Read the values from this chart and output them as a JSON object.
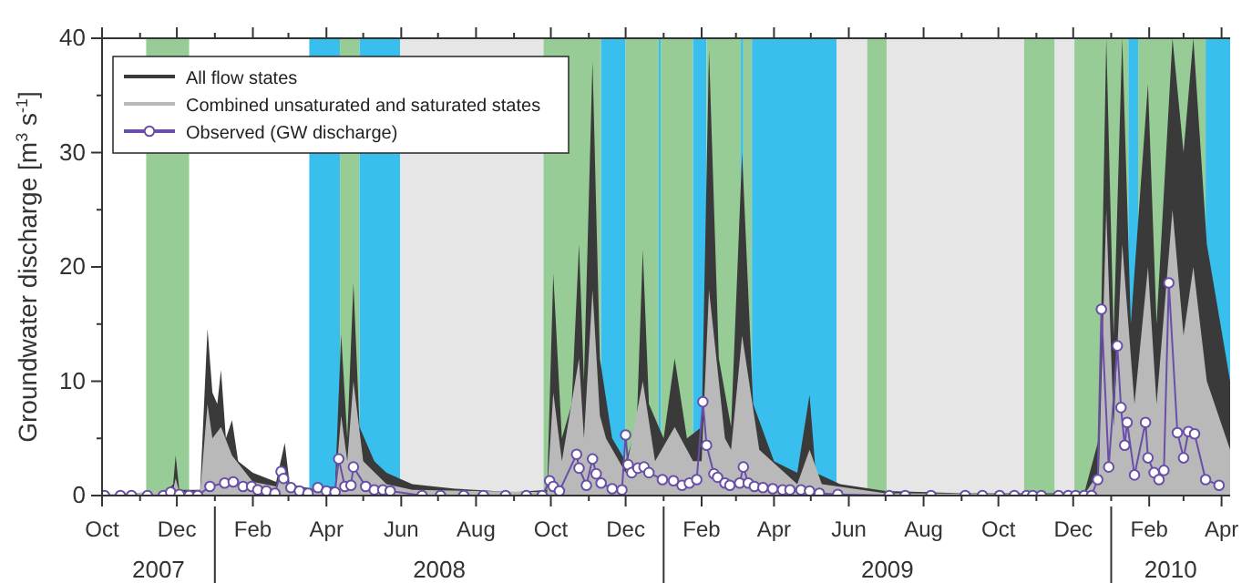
{
  "chart_data": {
    "type": "line",
    "ylabel": "Groundwater discharge [m$^{3}$ s$^{-1}$]",
    "xlim": [
      "2007-10-01",
      "2010-04-08"
    ],
    "ylim": [
      0,
      40
    ],
    "yticks": [
      0,
      {
        "value": 5,
        "label": null
      },
      10,
      {
        "value": 15,
        "label": null
      },
      20,
      {
        "value": 25,
        "label": null
      },
      30,
      {
        "value": 35,
        "label": null
      },
      40
    ],
    "xticks": [
      {
        "value": "2007-10-01",
        "label": "Oct"
      },
      {
        "value": "2007-11-01",
        "label": null
      },
      {
        "value": "2007-12-01",
        "label": "Dec"
      },
      {
        "value": "2008-01-01",
        "label": null
      },
      {
        "value": "2008-02-01",
        "label": "Feb"
      },
      {
        "value": "2008-03-01",
        "label": null
      },
      {
        "value": "2008-04-01",
        "label": "Apr"
      },
      {
        "value": "2008-05-01",
        "label": null
      },
      {
        "value": "2008-06-01",
        "label": "Jun"
      },
      {
        "value": "2008-07-01",
        "label": null
      },
      {
        "value": "2008-08-01",
        "label": "Aug"
      },
      {
        "value": "2008-09-01",
        "label": null
      },
      {
        "value": "2008-10-01",
        "label": "Oct"
      },
      {
        "value": "2008-11-01",
        "label": null
      },
      {
        "value": "2008-12-01",
        "label": "Dec"
      },
      {
        "value": "2009-01-01",
        "label": null
      },
      {
        "value": "2009-02-01",
        "label": "Feb"
      },
      {
        "value": "2009-03-01",
        "label": null
      },
      {
        "value": "2009-04-01",
        "label": "Apr"
      },
      {
        "value": "2009-05-01",
        "label": null
      },
      {
        "value": "2009-06-01",
        "label": "Jun"
      },
      {
        "value": "2009-07-01",
        "label": null
      },
      {
        "value": "2009-08-01",
        "label": "Aug"
      },
      {
        "value": "2009-09-01",
        "label": null
      },
      {
        "value": "2009-10-01",
        "label": "Oct"
      },
      {
        "value": "2009-11-01",
        "label": null
      },
      {
        "value": "2009-12-01",
        "label": "Dec"
      },
      {
        "value": "2010-01-01",
        "label": null
      },
      {
        "value": "2010-02-01",
        "label": "Feb"
      },
      {
        "value": "2010-03-01",
        "label": null
      },
      {
        "value": "2010-04-01",
        "label": "Apr"
      }
    ],
    "annotations": [
      "2007",
      "2008",
      "2009",
      "2010"
    ],
    "grid": false,
    "legend": "top left",
    "bands": [
      {
        "axis": "x",
        "from": "2007-11-06",
        "to": "2007-12-11",
        "color": "#97cc97"
      },
      {
        "axis": "x",
        "from": "2008-03-18",
        "to": "2008-04-12",
        "color": "#38bfee"
      },
      {
        "axis": "x",
        "from": "2008-04-12",
        "to": "2008-04-28",
        "color": "#97cc97"
      },
      {
        "axis": "x",
        "from": "2008-04-28",
        "to": "2008-05-31",
        "color": "#38bfee"
      },
      {
        "axis": "x",
        "from": "2008-05-31",
        "to": "2008-09-25",
        "color": "#e6e6e6"
      },
      {
        "axis": "x",
        "from": "2008-09-25",
        "to": "2008-11-11",
        "color": "#97cc97"
      },
      {
        "axis": "x",
        "from": "2008-11-11",
        "to": "2008-12-01",
        "color": "#38bfee"
      },
      {
        "axis": "x",
        "from": "2008-12-01",
        "to": "2008-12-28",
        "color": "#97cc97"
      },
      {
        "axis": "x",
        "from": "2008-12-28",
        "to": "2008-12-30",
        "color": "#38bfee"
      },
      {
        "axis": "x",
        "from": "2008-12-30",
        "to": "2009-01-25",
        "color": "#97cc97"
      },
      {
        "axis": "x",
        "from": "2009-01-25",
        "to": "2009-02-05",
        "color": "#38bfee"
      },
      {
        "axis": "x",
        "from": "2009-02-05",
        "to": "2009-03-05",
        "color": "#97cc97"
      },
      {
        "axis": "x",
        "from": "2009-03-05",
        "to": "2009-03-07",
        "color": "#38bfee"
      },
      {
        "axis": "x",
        "from": "2009-03-07",
        "to": "2009-03-14",
        "color": "#97cc97"
      },
      {
        "axis": "x",
        "from": "2009-03-14",
        "to": "2009-05-22",
        "color": "#38bfee"
      },
      {
        "axis": "x",
        "from": "2009-05-22",
        "to": "2009-06-16",
        "color": "#e6e6e6"
      },
      {
        "axis": "x",
        "from": "2009-06-16",
        "to": "2009-07-02",
        "color": "#97cc97"
      },
      {
        "axis": "x",
        "from": "2009-07-02",
        "to": "2009-10-22",
        "color": "#e6e6e6"
      },
      {
        "axis": "x",
        "from": "2009-10-22",
        "to": "2009-11-16",
        "color": "#97cc97"
      },
      {
        "axis": "x",
        "from": "2009-11-16",
        "to": "2009-12-02",
        "color": "#e6e6e6"
      },
      {
        "axis": "x",
        "from": "2009-12-02",
        "to": "2010-01-15",
        "color": "#97cc97"
      },
      {
        "axis": "x",
        "from": "2010-01-15",
        "to": "2010-01-23",
        "color": "#38bfee"
      },
      {
        "axis": "x",
        "from": "2010-01-23",
        "to": "2010-03-19",
        "color": "#97cc97"
      },
      {
        "axis": "x",
        "from": "2010-03-19",
        "to": "2010-04-08",
        "color": "#38bfee"
      }
    ],
    "series": [
      {
        "name": "All flow states",
        "type": "area",
        "color": "#3a3a3a",
        "x": [
          "2007-10-01",
          "2007-11-20",
          "2007-11-28",
          "2007-11-30",
          "2007-12-03",
          "2007-12-20",
          "2007-12-26",
          "2007-12-30",
          "2008-01-03",
          "2008-01-06",
          "2008-01-10",
          "2008-01-15",
          "2008-01-20",
          "2008-02-01",
          "2008-02-20",
          "2008-02-27",
          "2008-03-02",
          "2008-03-20",
          "2008-04-08",
          "2008-04-13",
          "2008-04-18",
          "2008-04-23",
          "2008-04-28",
          "2008-05-10",
          "2008-05-20",
          "2008-06-10",
          "2008-07-15",
          "2008-09-01",
          "2008-09-28",
          "2008-10-03",
          "2008-10-10",
          "2008-10-18",
          "2008-10-24",
          "2008-10-28",
          "2008-11-04",
          "2008-11-10",
          "2008-11-20",
          "2008-12-01",
          "2008-12-10",
          "2008-12-15",
          "2008-12-20",
          "2009-01-01",
          "2009-01-10",
          "2009-01-20",
          "2009-02-01",
          "2009-02-07",
          "2009-02-15",
          "2009-02-25",
          "2009-03-06",
          "2009-03-15",
          "2009-04-01",
          "2009-04-20",
          "2009-04-30",
          "2009-05-05",
          "2009-05-25",
          "2009-07-01",
          "2009-09-01",
          "2009-12-10",
          "2009-12-22",
          "2009-12-28",
          "2010-01-03",
          "2010-01-10",
          "2010-01-17",
          "2010-01-31",
          "2010-02-07",
          "2010-02-20",
          "2010-03-01",
          "2010-03-09",
          "2010-03-20",
          "2010-04-08"
        ],
        "values": [
          0.1,
          0.1,
          1,
          3.5,
          0.5,
          0.5,
          14.6,
          9,
          8,
          11,
          5,
          6.6,
          3,
          2,
          1.2,
          4.6,
          1,
          0.6,
          0.8,
          14.1,
          5,
          18.6,
          6,
          3,
          2,
          1,
          0.6,
          0.3,
          0.5,
          19.4,
          5,
          8,
          22,
          10,
          38,
          12,
          5,
          3,
          6,
          21.5,
          8,
          5,
          12,
          5,
          6,
          39,
          12,
          6,
          30,
          8,
          3,
          2,
          8.8,
          2,
          1,
          0.4,
          0.2,
          0.2,
          5,
          40,
          14,
          40,
          15,
          36,
          15,
          40,
          30,
          40,
          22,
          10
        ]
      },
      {
        "name": "Combined unsaturated and saturated states",
        "type": "area",
        "color": "#b9b9b9",
        "x": [
          "2007-10-01",
          "2007-11-28",
          "2007-11-30",
          "2007-12-03",
          "2007-12-20",
          "2007-12-26",
          "2007-12-30",
          "2008-01-06",
          "2008-01-15",
          "2008-02-01",
          "2008-02-20",
          "2008-02-27",
          "2008-03-02",
          "2008-04-08",
          "2008-04-13",
          "2008-04-18",
          "2008-04-23",
          "2008-05-01",
          "2008-05-20",
          "2008-06-10",
          "2008-09-28",
          "2008-10-03",
          "2008-10-10",
          "2008-10-24",
          "2008-10-28",
          "2008-11-04",
          "2008-11-10",
          "2008-11-15",
          "2008-12-01",
          "2008-12-15",
          "2008-12-25",
          "2009-01-10",
          "2009-01-25",
          "2009-02-01",
          "2009-02-07",
          "2009-02-20",
          "2009-02-25",
          "2009-03-06",
          "2009-03-20",
          "2009-04-20",
          "2009-04-30",
          "2009-05-10",
          "2009-07-01",
          "2009-12-10",
          "2009-12-22",
          "2009-12-28",
          "2010-01-03",
          "2010-01-10",
          "2010-01-20",
          "2010-01-31",
          "2010-02-07",
          "2010-02-20",
          "2010-03-01",
          "2010-03-09",
          "2010-03-20",
          "2010-04-08"
        ],
        "values": [
          0,
          0.5,
          1.5,
          0.3,
          0.3,
          8,
          5,
          6,
          3.5,
          1.2,
          0.8,
          2.5,
          0.6,
          0.5,
          7,
          3,
          10,
          3,
          1,
          0.5,
          0.3,
          9,
          3,
          12,
          5,
          18,
          7,
          5,
          2,
          10,
          3,
          6,
          3,
          3,
          18,
          5,
          4,
          14,
          4,
          1,
          4,
          1,
          0.2,
          0.1,
          2,
          25,
          6,
          22,
          8,
          20,
          8,
          25,
          14,
          20,
          10,
          4
        ]
      },
      {
        "name": "Observed (GW discharge)",
        "type": "line",
        "color": "#6a4fa8",
        "marker": "circle",
        "line_style": "solid",
        "x": [
          "2007-10-03",
          "2007-10-16",
          "2007-10-25",
          "2007-11-07",
          "2007-11-20",
          "2007-11-26",
          "2007-12-03",
          "2007-12-11",
          "2007-12-18",
          "2007-12-28",
          "2008-01-09",
          "2008-01-16",
          "2008-01-24",
          "2008-01-31",
          "2008-02-05",
          "2008-02-12",
          "2008-02-19",
          "2008-02-24",
          "2008-02-26",
          "2008-03-03",
          "2008-03-10",
          "2008-03-17",
          "2008-03-25",
          "2008-04-01",
          "2008-04-08",
          "2008-04-11",
          "2008-04-16",
          "2008-04-21",
          "2008-04-23",
          "2008-05-03",
          "2008-05-10",
          "2008-05-17",
          "2008-05-23",
          "2008-06-18",
          "2008-07-03",
          "2008-07-22",
          "2008-08-07",
          "2008-08-25",
          "2008-09-11",
          "2008-09-24",
          "2008-09-30",
          "2008-10-03",
          "2008-10-08",
          "2008-10-22",
          "2008-10-24",
          "2008-10-30",
          "2008-11-04",
          "2008-11-07",
          "2008-11-11",
          "2008-11-20",
          "2008-11-28",
          "2008-12-01",
          "2008-12-03",
          "2008-12-06",
          "2008-12-11",
          "2008-12-16",
          "2008-12-20",
          "2008-12-31",
          "2009-01-09",
          "2009-01-16",
          "2009-01-22",
          "2009-01-28",
          "2009-02-02",
          "2009-02-05",
          "2009-02-11",
          "2009-02-14",
          "2009-02-20",
          "2009-02-24",
          "2009-03-04",
          "2009-03-07",
          "2009-03-11",
          "2009-03-16",
          "2009-03-23",
          "2009-03-31",
          "2009-04-08",
          "2009-04-14",
          "2009-04-23",
          "2009-04-30",
          "2009-05-08",
          "2009-05-23",
          "2009-07-04",
          "2009-07-17",
          "2009-08-07",
          "2009-09-04",
          "2009-09-18",
          "2009-10-02",
          "2009-10-14",
          "2009-10-24",
          "2009-10-29",
          "2009-11-05",
          "2009-11-19",
          "2009-11-27",
          "2009-12-03",
          "2009-12-10",
          "2009-12-16",
          "2009-12-21",
          "2009-12-24",
          "2009-12-30",
          "2010-01-06",
          "2010-01-09",
          "2010-01-12",
          "2010-01-14",
          "2010-01-20",
          "2010-01-29",
          "2010-01-31",
          "2010-02-05",
          "2010-02-09",
          "2010-02-13",
          "2010-02-17",
          "2010-02-24",
          "2010-03-01",
          "2010-03-05",
          "2010-03-10",
          "2010-03-19",
          "2010-03-30"
        ],
        "values": [
          0,
          0,
          0,
          0,
          0,
          0.3,
          0.1,
          0,
          0,
          0.8,
          1.1,
          1.2,
          0.8,
          0.8,
          0.5,
          0.4,
          0.2,
          2.1,
          1.5,
          0.7,
          0.4,
          0.2,
          0.7,
          0.4,
          0.3,
          3.2,
          0.8,
          0.9,
          2.5,
          0.8,
          0.5,
          0.5,
          0.4,
          0,
          0,
          0,
          0,
          0,
          0,
          0,
          1.3,
          0.8,
          0.4,
          3.6,
          2.4,
          0.9,
          3.2,
          1.9,
          1.1,
          0.6,
          0.5,
          5.3,
          2.7,
          2.0,
          2.4,
          2.5,
          2.0,
          1.4,
          1.3,
          0.9,
          1.1,
          1.4,
          8.2,
          4.4,
          1.9,
          1.6,
          1.1,
          0.9,
          1.1,
          2.5,
          1.1,
          0.8,
          0.7,
          0.6,
          0.5,
          0.5,
          0.5,
          0.4,
          0.2,
          0.1,
          0,
          0,
          0,
          0,
          0,
          0,
          0,
          0,
          0,
          0,
          0,
          0,
          0,
          0,
          0,
          1.4,
          16.3,
          2.5,
          13.1,
          7.7,
          4.4,
          6.4,
          1.8,
          6.4,
          3.3,
          2.0,
          1.4,
          2.2,
          18.6,
          5.5,
          3.3,
          5.6,
          5.4,
          1.4,
          0.9
        ]
      }
    ]
  }
}
